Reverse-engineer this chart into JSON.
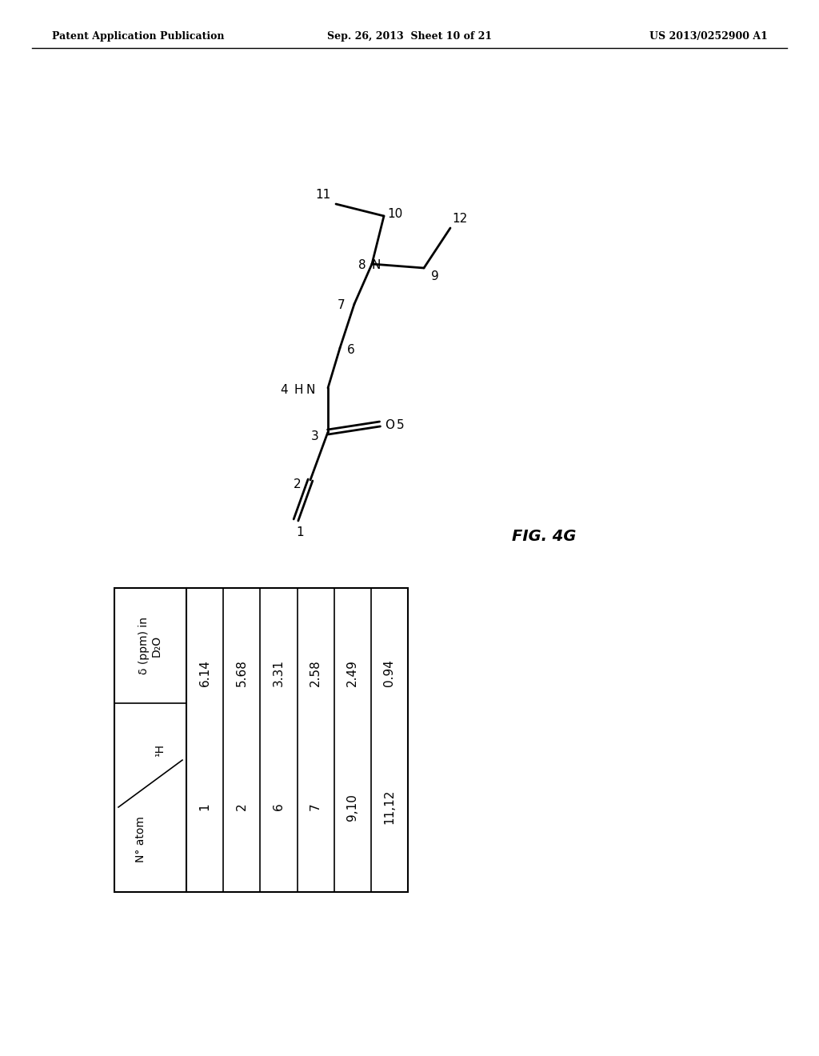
{
  "header_left": "Patent Application Publication",
  "header_center": "Sep. 26, 2013  Sheet 10 of 21",
  "header_right": "US 2013/0252900 A1",
  "fig_label": "FIG. 4G",
  "table_rows": [
    [
      "1",
      "6.14"
    ],
    [
      "2",
      "5.68"
    ],
    [
      "6",
      "3.31"
    ],
    [
      "7",
      "2.58"
    ],
    [
      "9,10",
      "2.49"
    ],
    [
      "11,12",
      "0.94"
    ]
  ],
  "background_color": "#ffffff",
  "text_color": "#000000",
  "line_color": "#000000"
}
